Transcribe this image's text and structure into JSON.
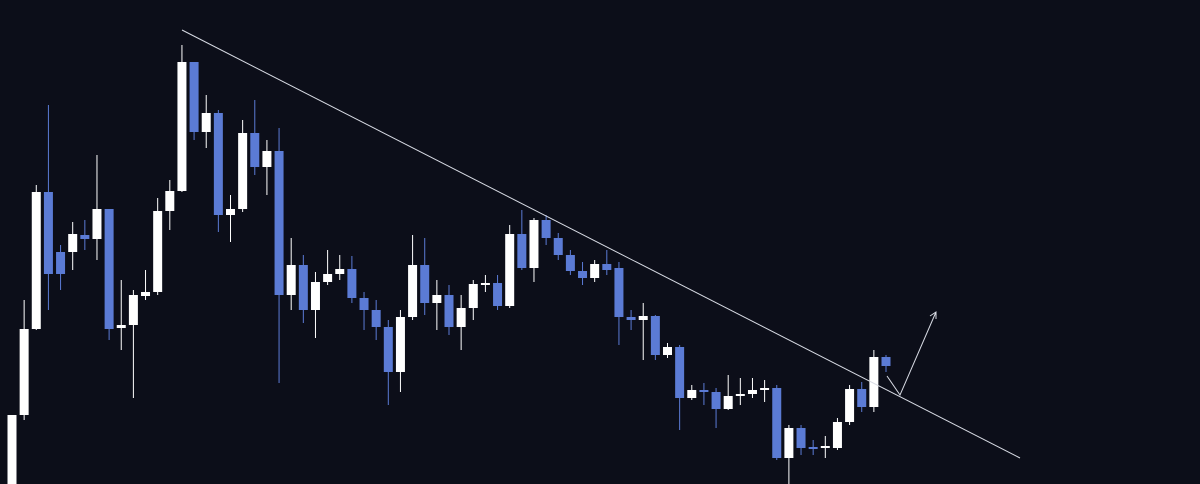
{
  "chart_data": {
    "type": "candlestick",
    "up_color": "#ffffff",
    "down_color": "#5b7bd5",
    "background": "#0c0e19",
    "ylim": [
      0,
      484
    ],
    "open": [
      0,
      69,
      155,
      292,
      232,
      232,
      249,
      245,
      275,
      156,
      159,
      188,
      192,
      273,
      293,
      422,
      352,
      371,
      269,
      275,
      351,
      317,
      333,
      189,
      219,
      174,
      202,
      210,
      215,
      186,
      174,
      157,
      112,
      167,
      219,
      181,
      189,
      157,
      176,
      199,
      201,
      178,
      250,
      216,
      264,
      246,
      229,
      213,
      206,
      220,
      216,
      167,
      164,
      168,
      129,
      137,
      86,
      94,
      92,
      75,
      88,
      90,
      94,
      96,
      26,
      56,
      37,
      36,
      36,
      62,
      95,
      77,
      127
    ],
    "high": [
      69,
      184,
      299,
      379,
      239,
      262,
      264,
      329,
      275,
      204,
      194,
      214,
      286,
      304,
      439,
      422,
      389,
      374,
      289,
      364,
      384,
      344,
      356,
      246,
      229,
      212,
      234,
      229,
      228,
      192,
      184,
      164,
      174,
      249,
      246,
      204,
      199,
      189,
      204,
      209,
      209,
      259,
      274,
      266,
      269,
      251,
      234,
      222,
      224,
      234,
      222,
      174,
      181,
      169,
      141,
      139,
      99,
      101,
      96,
      109,
      106,
      106,
      104,
      99,
      59,
      59,
      44,
      48,
      66,
      99,
      102,
      134,
      129
    ],
    "low": [
      0,
      64,
      154,
      174,
      194,
      214,
      234,
      224,
      144,
      134,
      86,
      184,
      189,
      254,
      292,
      344,
      336,
      252,
      242,
      272,
      309,
      289,
      101,
      174,
      161,
      146,
      199,
      204,
      181,
      154,
      144,
      79,
      92,
      164,
      169,
      154,
      149,
      134,
      164,
      192,
      174,
      176,
      214,
      202,
      239,
      224,
      209,
      199,
      202,
      209,
      139,
      154,
      124,
      124,
      126,
      54,
      84,
      79,
      56,
      74,
      79,
      86,
      82,
      24,
      0,
      29,
      29,
      26,
      34,
      59,
      72,
      72,
      112
    ],
    "close": [
      69,
      155,
      292,
      210,
      210,
      250,
      245,
      275,
      155,
      159,
      189,
      192,
      273,
      293,
      422,
      352,
      371,
      269,
      275,
      351,
      317,
      333,
      189,
      219,
      174,
      202,
      210,
      215,
      186,
      174,
      157,
      112,
      167,
      219,
      181,
      189,
      157,
      176,
      200,
      201,
      178,
      250,
      216,
      264,
      246,
      229,
      213,
      206,
      220,
      214,
      167,
      164,
      168,
      129,
      137,
      86,
      94,
      92,
      75,
      88,
      90,
      94,
      96,
      26,
      56,
      36,
      35,
      38,
      62,
      95,
      77,
      127,
      118
    ]
  }
}
